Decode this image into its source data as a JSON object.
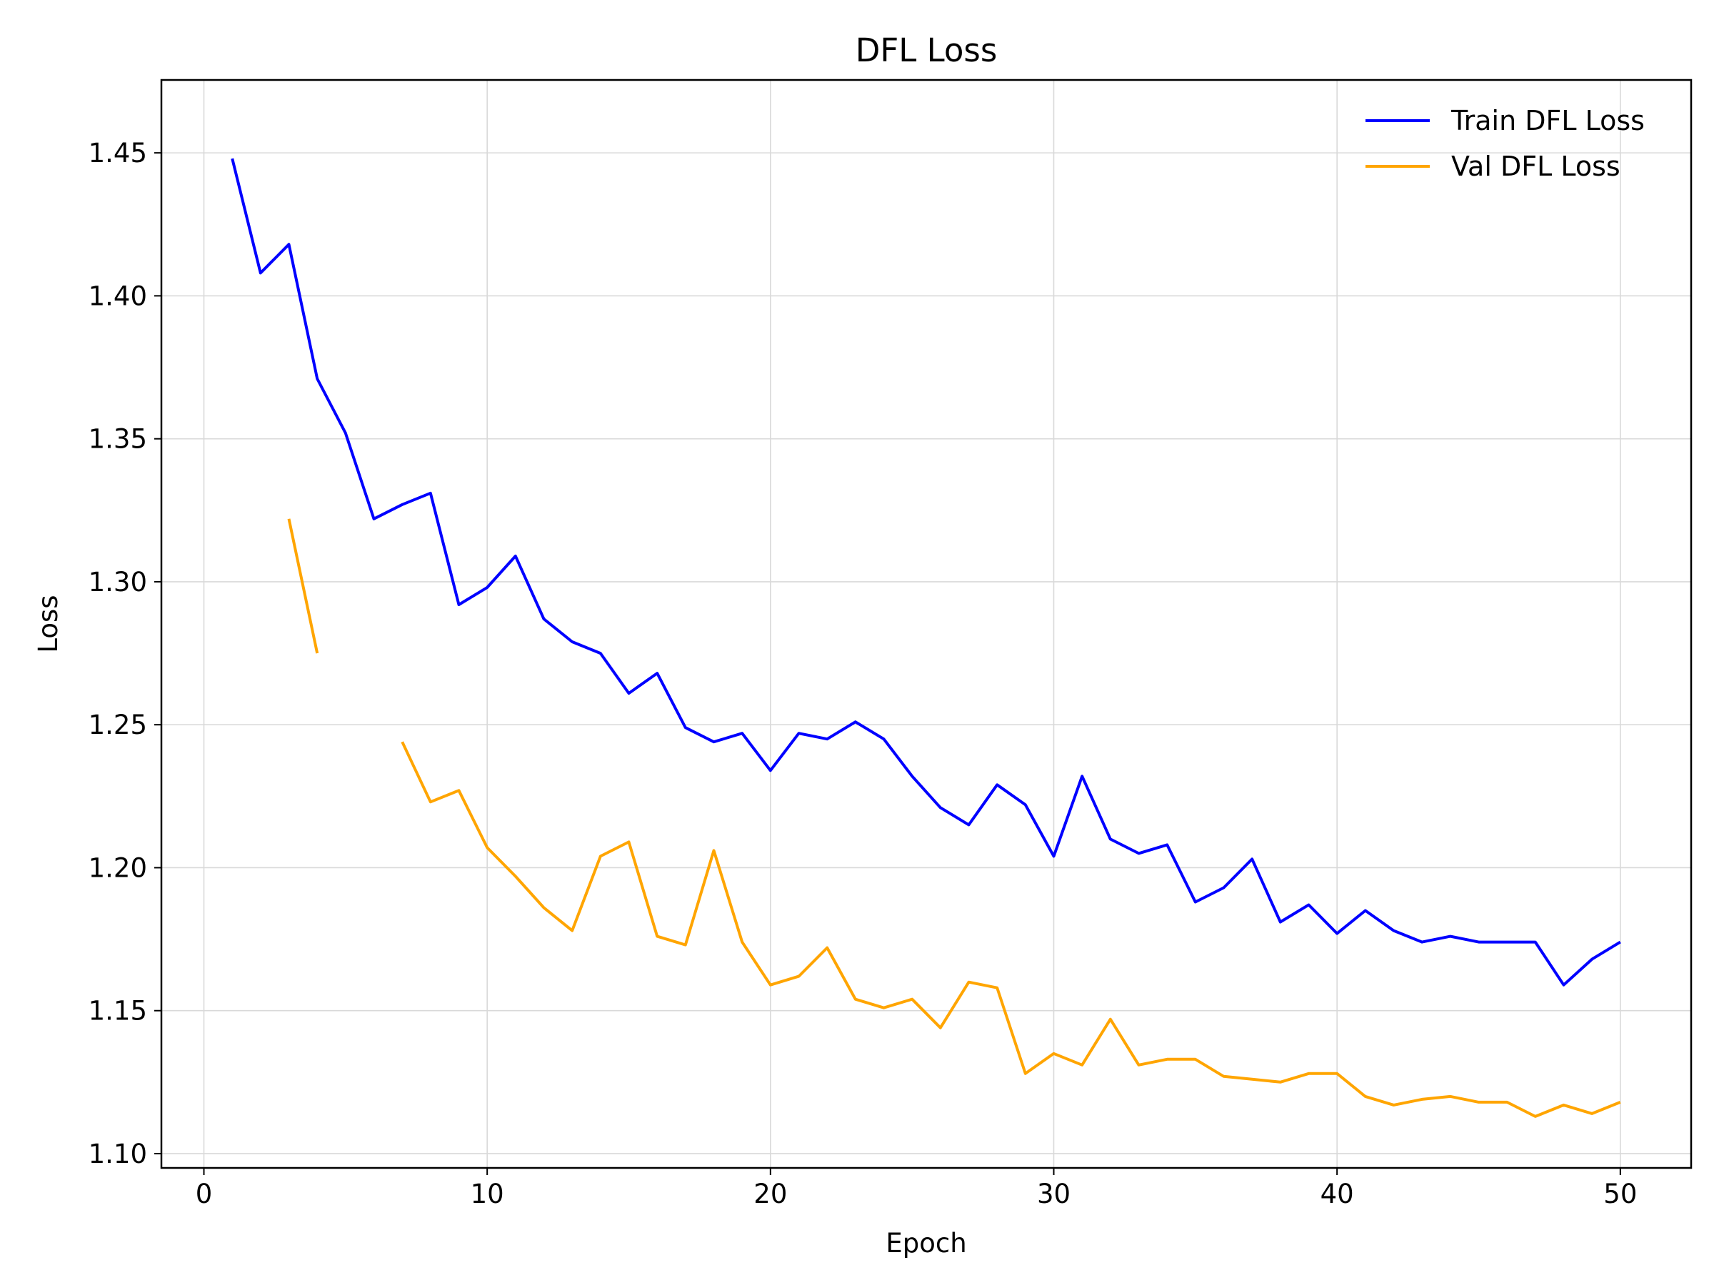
{
  "chart_data": {
    "type": "line",
    "title": "DFL Loss",
    "xlabel": "Epoch",
    "ylabel": "Loss",
    "xlim": [
      -1.5,
      52.5
    ],
    "ylim": [
      1.095,
      1.4755
    ],
    "xticks": [
      0,
      10,
      20,
      30,
      40,
      50
    ],
    "yticks": [
      1.1,
      1.15,
      1.2,
      1.25,
      1.3,
      1.35,
      1.4,
      1.45
    ],
    "ytick_decimals": 2,
    "grid": true,
    "legend_position": "top-right",
    "x": [
      1,
      2,
      3,
      4,
      5,
      6,
      7,
      8,
      9,
      10,
      11,
      12,
      13,
      14,
      15,
      16,
      17,
      18,
      19,
      20,
      21,
      22,
      23,
      24,
      25,
      26,
      27,
      28,
      29,
      30,
      31,
      32,
      33,
      34,
      35,
      36,
      37,
      38,
      39,
      40,
      41,
      42,
      43,
      44,
      45,
      46,
      47,
      48,
      49,
      50
    ],
    "series": [
      {
        "name": "Train DFL Loss",
        "color": "#0000ff",
        "values": [
          1.448,
          1.408,
          1.418,
          1.371,
          1.352,
          1.322,
          1.327,
          1.331,
          1.292,
          1.298,
          1.309,
          1.287,
          1.279,
          1.275,
          1.261,
          1.268,
          1.249,
          1.244,
          1.247,
          1.234,
          1.247,
          1.245,
          1.251,
          1.245,
          1.232,
          1.221,
          1.215,
          1.229,
          1.222,
          1.204,
          1.232,
          1.21,
          1.205,
          1.208,
          1.188,
          1.193,
          1.203,
          1.181,
          1.187,
          1.177,
          1.185,
          1.178,
          1.174,
          1.176,
          1.174,
          1.174,
          1.174,
          1.159,
          1.168,
          1.174
        ]
      },
      {
        "name": "Val DFL Loss",
        "color": "#ffa500",
        "values": [
          null,
          null,
          1.322,
          1.275,
          null,
          null,
          1.244,
          1.223,
          1.227,
          1.207,
          1.197,
          1.186,
          1.178,
          1.204,
          1.209,
          1.176,
          1.173,
          1.206,
          1.174,
          1.159,
          1.162,
          1.172,
          1.154,
          1.151,
          1.154,
          1.144,
          1.16,
          1.158,
          1.128,
          1.135,
          1.131,
          1.147,
          1.131,
          1.133,
          1.133,
          1.127,
          1.126,
          1.125,
          1.128,
          1.128,
          1.12,
          1.117,
          1.119,
          1.12,
          1.118,
          1.118,
          1.113,
          1.117,
          1.114,
          1.118
        ]
      }
    ]
  }
}
